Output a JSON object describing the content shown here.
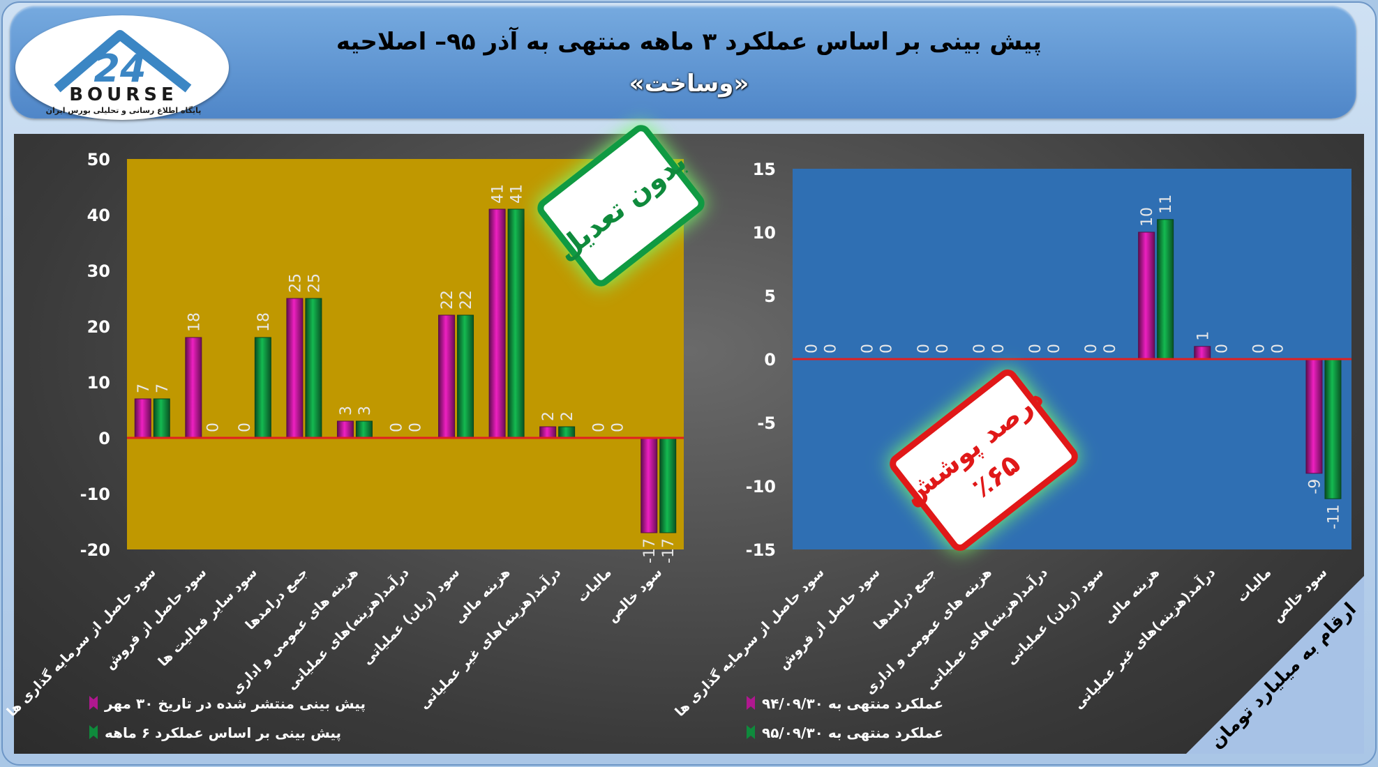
{
  "header": {
    "title": "پیش بینی بر اساس عملکرد ۳ ماهه منتهی به آذر ۹۵– اصلاحیه",
    "subtitle": "«وساخت»"
  },
  "logo": {
    "text": "BOURSE",
    "number": "24",
    "tagline": "پایگاه اطلاع رسانی و تحلیلی بورس ایران"
  },
  "badges": {
    "left": "بدون تعدیل",
    "right_line1": "درصد پوشش",
    "right_line2": "٪۶۵",
    "corner": "ارقام به میلیارد تومان"
  },
  "colors": {
    "left_plot_bg": "#c09800",
    "right_plot_bg": "#2f6fb3",
    "series1": "#b0188f",
    "series2": "#0f8a3c",
    "zero_line": "#e02020"
  },
  "chart_data": [
    {
      "type": "bar",
      "categories": [
        "سود حاصل از سرمایه گذاری ها",
        "سود حاصل از فروش",
        "سود سایر فعالیت ها",
        "جمع درامدها",
        "هزینه های عمومی و اداری",
        "درآمد(هزینه)های عملیاتی",
        "سود (زیان) عملیاتی",
        "هزینه مالی",
        "درآمد(هزینه)های غیر عملیاتی",
        "مالیات",
        "سود خالص"
      ],
      "series": [
        {
          "name": "پیش بینی منتشر شده در تاریخ ۳۰ مهر",
          "values": [
            7,
            18,
            0,
            25,
            3,
            0,
            22,
            41,
            2,
            0,
            -17
          ]
        },
        {
          "name": "پیش بینی بر اساس عملکرد ۶ ماهه",
          "values": [
            7,
            0,
            18,
            25,
            3,
            0,
            22,
            41,
            2,
            0,
            -17
          ]
        }
      ],
      "ylim": [
        -20,
        50
      ],
      "yticks": [
        "50",
        "40",
        "30",
        "20",
        "10",
        "0",
        "-10",
        "-20"
      ],
      "data_labels": [
        [
          "7",
          "18",
          "0",
          "25",
          "3",
          "0",
          "22",
          "41",
          "2",
          "0",
          "-17"
        ],
        [
          "7",
          "0",
          "18",
          "25",
          "3",
          "0",
          "22",
          "41",
          "2",
          "0",
          "-17"
        ]
      ],
      "grid": false,
      "legend": "bottom"
    },
    {
      "type": "bar",
      "categories": [
        "سود حاصل از سرمایه گذاری ها",
        "سود حاصل از فروش",
        "جمع درامدها",
        "هزینه های عمومی و اداری",
        "درآمد(هزینه)های عملیاتی",
        "سود (زیان) عملیاتی",
        "هزینه مالی",
        "درآمد(هزینه)های غیر عملیاتی",
        "مالیات",
        "سود خالص"
      ],
      "series": [
        {
          "name": "عملکرد منتهی به ۹۴/۰۹/۳۰",
          "values": [
            0,
            0,
            0,
            0,
            0,
            0,
            10,
            1,
            0,
            -9
          ]
        },
        {
          "name": "عملکرد منتهی به ۹۵/۰۹/۳۰",
          "values": [
            0,
            0,
            0,
            0,
            0,
            0,
            11,
            0,
            0,
            -11
          ]
        }
      ],
      "ylim": [
        -15,
        15
      ],
      "yticks": [
        "15",
        "10",
        "5",
        "0",
        "-5",
        "-10",
        "-15"
      ],
      "data_labels": [
        [
          "0",
          "0",
          "0",
          "0",
          "0",
          "0",
          "10",
          "1",
          "0",
          "-9"
        ],
        [
          "0",
          "0",
          "0",
          "0",
          "0",
          "0",
          "11",
          "0",
          "0",
          "-11"
        ]
      ],
      "grid": false,
      "legend": "bottom"
    }
  ]
}
